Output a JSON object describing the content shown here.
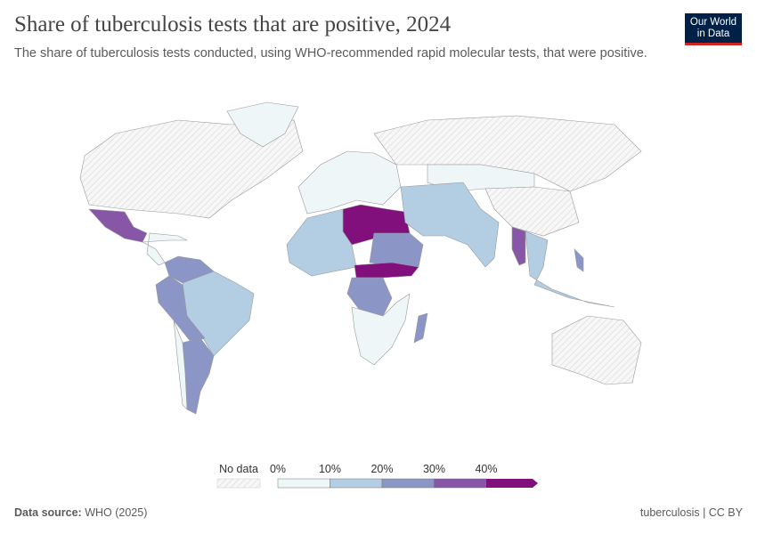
{
  "header": {
    "title": "Share of tuberculosis tests that are positive, 2024",
    "subtitle": "The share of tuberculosis tests conducted, using WHO-recommended rapid molecular tests, that were positive.",
    "logo": "Our World in Data"
  },
  "footer": {
    "source_label": "Data source:",
    "source": "WHO (2025)",
    "right": "tuberculosis | CC BY"
  },
  "chart_data": {
    "type": "choropleth",
    "year": 2024,
    "unit": "%",
    "legend": {
      "no_data_label": "No data",
      "ticks": [
        "0%",
        "10%",
        "20%",
        "30%",
        "40%"
      ],
      "bins": [
        {
          "range": [
            0,
            10
          ],
          "color": "#eef6f8"
        },
        {
          "range": [
            10,
            20
          ],
          "color": "#b3cde3"
        },
        {
          "range": [
            20,
            30
          ],
          "color": "#8c96c6"
        },
        {
          "range": [
            30,
            40
          ],
          "color": "#8856a7"
        },
        {
          "range": [
            40,
            null
          ],
          "color": "#810f7c"
        }
      ],
      "no_data_color": "#f2f2f2"
    },
    "regions": [
      {
        "name": "Canada & United States",
        "bin": "no data"
      },
      {
        "name": "Greenland",
        "bin": "0-10"
      },
      {
        "name": "Mexico",
        "bin": "30-40"
      },
      {
        "name": "Central America & Caribbean",
        "bin": "0-10"
      },
      {
        "name": "Colombia & Venezuela",
        "bin": "20-30"
      },
      {
        "name": "Brazil",
        "bin": "10-20"
      },
      {
        "name": "Peru & Bolivia",
        "bin": "20-30"
      },
      {
        "name": "Argentina",
        "bin": "20-30"
      },
      {
        "name": "Chile",
        "bin": "0-10"
      },
      {
        "name": "Europe",
        "bin": "0-10"
      },
      {
        "name": "Russia",
        "bin": "no data"
      },
      {
        "name": "Kazakhstan & Mongolia",
        "bin": "0-10"
      },
      {
        "name": "China",
        "bin": "no data"
      },
      {
        "name": "Libya & Egypt & Niger",
        "bin": "40+"
      },
      {
        "name": "Algeria & West Africa",
        "bin": "10-20"
      },
      {
        "name": "Chad & Sudan",
        "bin": "20-30"
      },
      {
        "name": "Central African Rep. & South Sudan",
        "bin": "40+"
      },
      {
        "name": "DR Congo",
        "bin": "20-30"
      },
      {
        "name": "Southern Africa",
        "bin": "0-10"
      },
      {
        "name": "Madagascar",
        "bin": "20-30"
      },
      {
        "name": "Middle East & South Asia",
        "bin": "10-20"
      },
      {
        "name": "Myanmar",
        "bin": "30-40"
      },
      {
        "name": "Southeast Asia",
        "bin": "10-20"
      },
      {
        "name": "Philippines",
        "bin": "20-30"
      },
      {
        "name": "Australia",
        "bin": "no data"
      }
    ]
  }
}
